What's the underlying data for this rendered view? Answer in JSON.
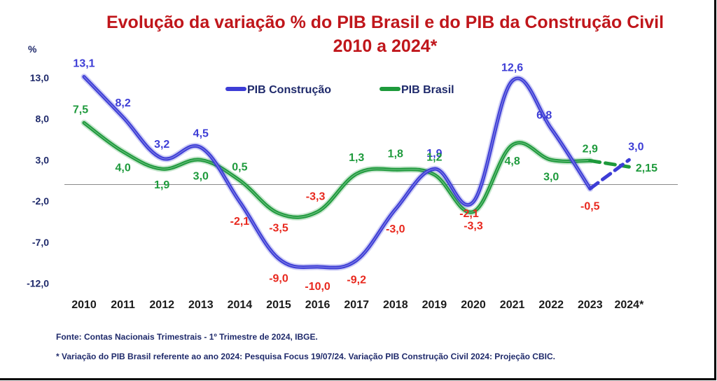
{
  "chart_data": {
    "type": "line",
    "title_line1": "Evolução da variação % do PIB Brasil e do PIB  da Construção Civil",
    "title_line2": "2010 a 2024*",
    "ylabel": "%",
    "ylim": [
      -12,
      15
    ],
    "yticks": [
      13.0,
      8.0,
      3.0,
      -2.0,
      -7.0,
      -12.0
    ],
    "ytick_labels": [
      "13,0",
      "8,0",
      "3,0",
      "-2,0",
      "-7,0",
      "-12,0"
    ],
    "categories": [
      "2010",
      "2011",
      "2012",
      "2013",
      "2014",
      "2015",
      "2016",
      "2017",
      "2018",
      "2019",
      "2020",
      "2021",
      "2022",
      "2023",
      "2024*"
    ],
    "grid": false,
    "legend_position": "top-center",
    "series": [
      {
        "name": "PIB Construção",
        "color": "#3d3dd6",
        "values": [
          13.1,
          8.2,
          3.2,
          4.5,
          -2.1,
          -9.0,
          -10.0,
          -9.2,
          -3.0,
          1.9,
          -2.1,
          12.6,
          6.8,
          -0.5,
          3.0
        ],
        "labels": [
          "13,1",
          "8,2",
          "3,2",
          "4,5",
          "-2,1",
          "-9,0",
          "-10,0",
          "-9,2",
          "-3,0",
          "1,9",
          "-2,1",
          "12,6",
          "6,8",
          "-0,5",
          "3,0"
        ],
        "last_segment_dashed": true
      },
      {
        "name": "PIB Brasil",
        "color": "#1e9a3c",
        "values": [
          7.5,
          4.0,
          1.9,
          3.0,
          0.5,
          -3.5,
          -3.3,
          1.3,
          1.8,
          1.2,
          -3.3,
          4.8,
          3.0,
          2.9,
          2.15
        ],
        "labels": [
          "7,5",
          "4,0",
          "1,9",
          "3,0",
          "0,5",
          "-3,5",
          "-3,3",
          "1,3",
          "1,8",
          "1,2",
          "-3,3",
          "4,8",
          "3,0",
          "2,9",
          "2,15"
        ],
        "last_segment_dashed": true
      }
    ],
    "negative_label_color": "#e8281e",
    "positive_label_color_construcao": "#3d3dd6",
    "positive_label_color_brasil": "#1e9a3c"
  },
  "footnotes": {
    "source": "Fonte: Contas Nacionais Trimestrais - 1º Trimestre de 2024, IBGE.",
    "note": "* Variação do  PIB Brasil  referente ao ano 2024: Pesquisa Focus  19/07/24. Variação PIB Construção Civil 2024: Projeção CBIC."
  }
}
